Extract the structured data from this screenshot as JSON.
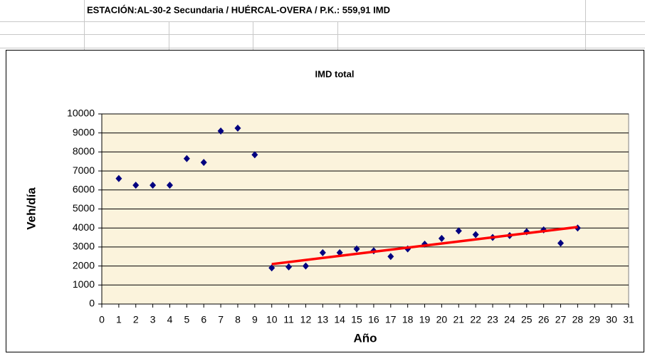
{
  "sheet_title": "ESTACIÓN:AL-30-2 Secundaria /  HUÉRCAL-OVERA / P.K.: 559,91 IMD",
  "chart_data": {
    "type": "scatter",
    "title": "IMD total",
    "x_label": "Año",
    "y_label": "Veh/día",
    "x": [
      1,
      2,
      3,
      4,
      5,
      6,
      7,
      8,
      9,
      10,
      11,
      12,
      13,
      14,
      15,
      16,
      17,
      18,
      19,
      20,
      21,
      22,
      23,
      24,
      25,
      26,
      27,
      28
    ],
    "values": [
      6600,
      6250,
      6250,
      6250,
      7650,
      7450,
      9100,
      9250,
      7850,
      1900,
      1950,
      2000,
      2700,
      2700,
      2900,
      2800,
      2500,
      2900,
      3150,
      3450,
      3850,
      3650,
      3500,
      3600,
      3800,
      3900,
      3200,
      4000
    ],
    "color": "#000080",
    "trendline": {
      "x": [
        10,
        28
      ],
      "values": [
        2100,
        4050
      ],
      "color": "#ff0000"
    },
    "xlim": [
      0,
      31
    ],
    "xticks": [
      0,
      1,
      2,
      3,
      4,
      5,
      6,
      7,
      8,
      9,
      10,
      11,
      12,
      13,
      14,
      15,
      16,
      17,
      18,
      19,
      20,
      21,
      22,
      23,
      24,
      25,
      26,
      27,
      28,
      29,
      30,
      31
    ],
    "ylim": [
      0,
      10000
    ],
    "yticks": [
      0,
      1000,
      2000,
      3000,
      4000,
      5000,
      6000,
      7000,
      8000,
      9000,
      10000
    ],
    "grid": true,
    "plot_background": "#fbf3dc"
  }
}
